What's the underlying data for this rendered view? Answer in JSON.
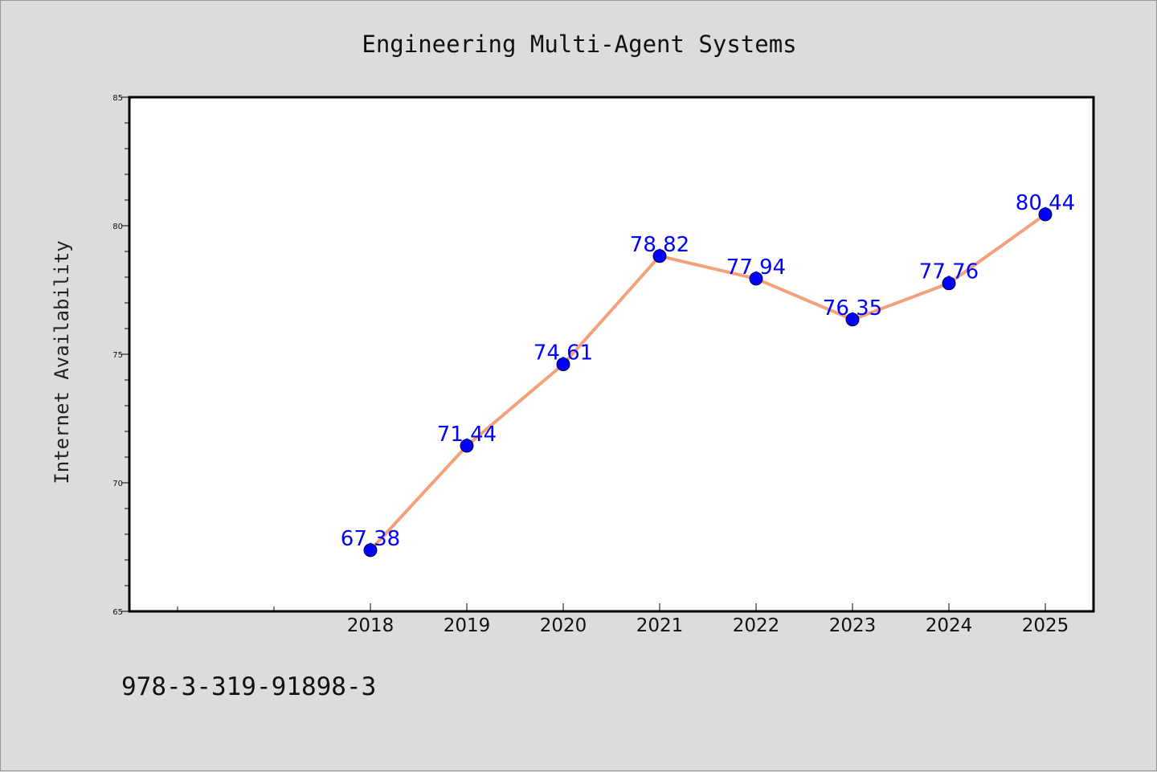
{
  "chart_data": {
    "type": "line",
    "title": "Engineering Multi-Agent Systems",
    "xlabel": "",
    "ylabel": "Internet Availability",
    "categories": [
      "2018",
      "2019",
      "2020",
      "2021",
      "2022",
      "2023",
      "2024",
      "2025"
    ],
    "series": [
      {
        "values": [
          67.38,
          71.44,
          74.61,
          78.82,
          77.94,
          76.35,
          77.76,
          80.44
        ],
        "labels": [
          "67.38",
          "71.44",
          "74.61",
          "78.82",
          "77.94",
          "76.35",
          "77.76",
          "80.44"
        ]
      }
    ],
    "ylim": [
      65,
      85
    ],
    "yticks": [
      "65",
      "70",
      "75",
      "80",
      "85"
    ],
    "grid": false,
    "line_color": "#f4a07a",
    "marker_color": "#0000ff",
    "label_color": "#0000ff"
  },
  "footer": {
    "isbn": "978-3-319-91898-3"
  }
}
